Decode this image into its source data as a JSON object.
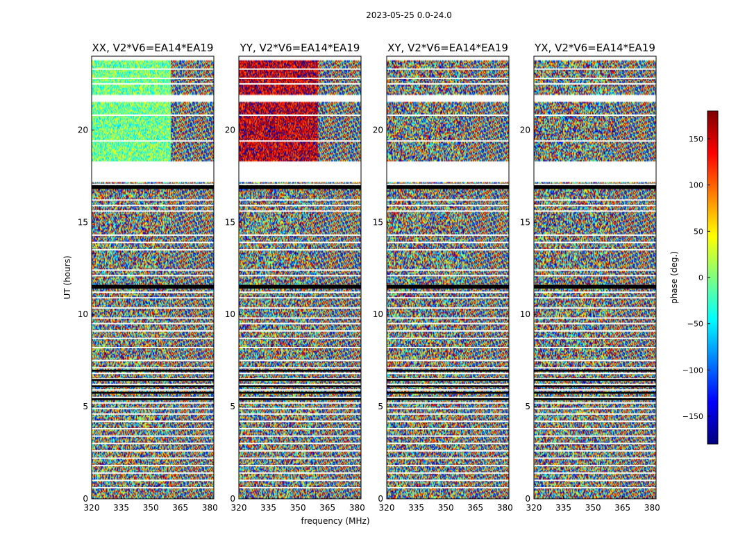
{
  "chart_data": {
    "type": "heatmap",
    "title": "2023-05-25 0.0-24.0",
    "xlabel": "frequency (MHz)",
    "ylabel": "UT (hours)",
    "xlim": [
      320,
      382
    ],
    "ylim": [
      0,
      24
    ],
    "x_ticks": [
      320,
      335,
      350,
      365,
      380
    ],
    "y_ticks": [
      0,
      5,
      10,
      15,
      20
    ],
    "colorbar": {
      "label": "phase (deg.)",
      "range": [
        -180,
        180
      ],
      "ticks": [
        -150,
        -100,
        -50,
        0,
        50,
        100,
        150
      ],
      "tick_labels": [
        "−150",
        "−100",
        "−50",
        "0",
        "50",
        "100",
        "150"
      ],
      "colormap": "jet"
    },
    "panels": [
      {
        "title": "XX, V2*V6=EA14*EA19",
        "pol": "XX",
        "bias_phase": -5,
        "fringe_start_mhz": 360
      },
      {
        "title": "YY, V2*V6=EA14*EA19",
        "pol": "YY",
        "bias_phase": 150,
        "fringe_start_mhz": 360
      },
      {
        "title": "XY, V2*V6=EA14*EA19",
        "pol": "XY",
        "bias_phase": null,
        "fringe_start_mhz": 360
      },
      {
        "title": "YX, V2*V6=EA14*EA19",
        "pol": "YX",
        "bias_phase": null,
        "fringe_start_mhz": 360
      }
    ],
    "flagged_ut_ranges": [
      [
        17.2,
        18.3
      ],
      [
        21.5,
        21.9
      ],
      [
        23.75,
        24.0
      ]
    ],
    "flag_lines_ut": [
      23.3,
      22.8,
      22.5,
      20.8,
      19.4,
      17.05,
      16.2,
      15.9,
      15.6,
      14.3,
      13.9,
      13.5,
      12.4,
      12.1,
      11.55,
      11.2,
      10.9,
      10.35,
      9.8,
      9.5,
      9.1,
      8.7,
      8.2,
      7.5,
      7.1,
      6.8,
      6.5,
      6.2,
      5.9,
      5.5,
      5.2,
      4.9,
      4.6,
      4.2,
      3.8,
      3.4,
      3.0,
      2.6,
      2.2,
      1.8,
      1.4,
      1.0,
      0.6
    ],
    "black_bands_ut": [
      [
        16.8,
        17.0
      ],
      [
        11.4,
        11.6
      ],
      [
        6.9,
        7.0
      ],
      [
        6.4,
        6.5
      ],
      [
        6.05,
        6.15
      ],
      [
        5.7,
        5.8
      ],
      [
        5.35,
        5.45
      ]
    ],
    "coherent_ut_ranges": [
      [
        18.3,
        21.5
      ],
      [
        21.9,
        23.75
      ]
    ]
  }
}
